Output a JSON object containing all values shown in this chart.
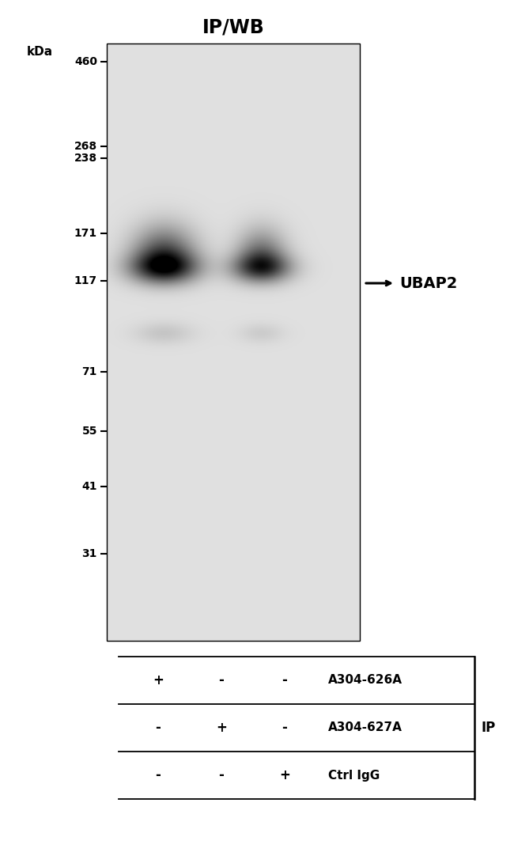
{
  "title": "IP/WB",
  "title_fontsize": 17,
  "title_fontweight": "bold",
  "gel_bg_color": [
    0.88,
    0.88,
    0.88
  ],
  "white_bg": "#ffffff",
  "markers": [
    460,
    268,
    238,
    171,
    117,
    71,
    55,
    41,
    31
  ],
  "annotation_text": "UBAP2",
  "annotation_fontsize": 14,
  "annotation_fontweight": "bold",
  "table_labels_row1": [
    "+",
    "-",
    "-",
    "A304-626A"
  ],
  "table_labels_row2": [
    "-",
    "+",
    "-",
    "A304-627A"
  ],
  "table_labels_row3": [
    "-",
    "-",
    "+",
    "Ctrl IgG"
  ],
  "ip_label": "IP"
}
